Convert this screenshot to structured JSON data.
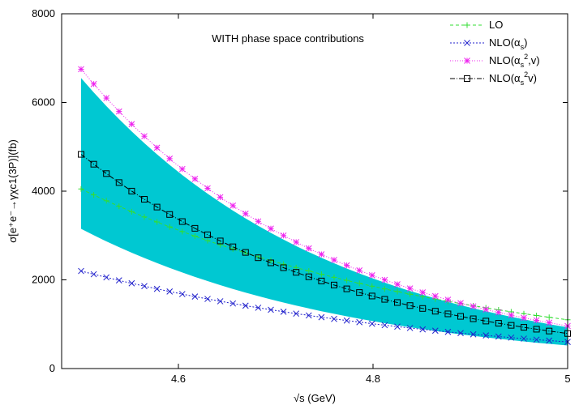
{
  "chart_data": {
    "type": "line",
    "title": "WITH phase space contributions",
    "xlabel": "√s (GeV)",
    "ylabel": "σ[e⁺e⁻→γχc1(3P)](fb)",
    "xlim": [
      4.48,
      5.0
    ],
    "ylim": [
      0,
      8000
    ],
    "xticks": [
      4.6,
      4.8,
      5
    ],
    "yticks": [
      0,
      2000,
      4000,
      6000,
      8000
    ],
    "grid": false,
    "legend_position": "top-right",
    "x": [
      4.5,
      4.513,
      4.526,
      4.539,
      4.552,
      4.565,
      4.578,
      4.591,
      4.604,
      4.617,
      4.63,
      4.643,
      4.656,
      4.669,
      4.682,
      4.695,
      4.708,
      4.721,
      4.734,
      4.747,
      4.76,
      4.773,
      4.786,
      4.799,
      4.812,
      4.825,
      4.838,
      4.851,
      4.864,
      4.877,
      4.89,
      4.903,
      4.916,
      4.929,
      4.942,
      4.955,
      4.968,
      4.981,
      5.0
    ],
    "band": {
      "upper_start": 6550,
      "upper_end": 930,
      "lower_start": 3150,
      "lower_end": 520
    },
    "series": [
      {
        "name": "LO",
        "marker": "+",
        "color": "#33dd33",
        "dash": "4,3",
        "start": 4050,
        "end": 1100
      },
      {
        "name": "NLO(αs)",
        "marker": "x",
        "color": "#2222cc",
        "dash": "2,2",
        "start": 2200,
        "end": 600
      },
      {
        "name": "NLO(αs,v²)",
        "marker": "*",
        "color": "#ee22ee",
        "dash": "1,2",
        "start": 6750,
        "end": 960
      },
      {
        "name": "NLO(αsv²)",
        "marker": "square",
        "color": "#000000",
        "dash": "6,2,1,2",
        "start": 4830,
        "end": 790
      }
    ],
    "colors": {
      "band": "#00c8d2",
      "axis": "#000000"
    }
  },
  "legend": [
    {
      "base": "LO",
      "sub": "",
      "sup": "",
      "tail": ""
    },
    {
      "base": "NLO(α",
      "sub": "s",
      "sup": "",
      "tail": ")"
    },
    {
      "base": "NLO(α",
      "sub": "s",
      "sup": "2",
      "tail": ",v)"
    },
    {
      "base": "NLO(α",
      "sub": "s",
      "sup": "2",
      "tail": "v)"
    }
  ]
}
